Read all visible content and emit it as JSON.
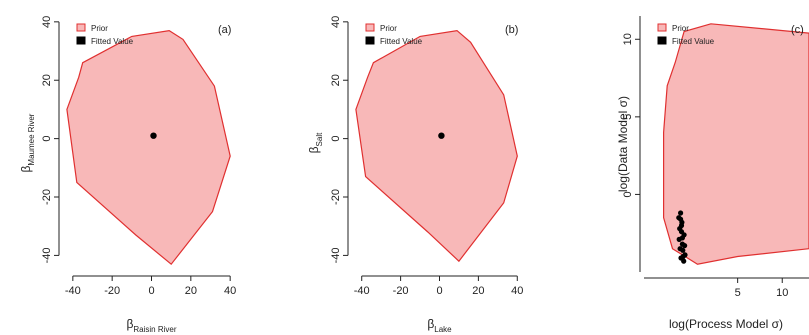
{
  "figure": "three-panel prior vs fitted scatter",
  "chart_data": [
    {
      "type": "area",
      "panel_label": "(a)",
      "xlabel_base": "β",
      "xlabel_sub": "Raisin River",
      "ylabel_base": "β",
      "ylabel_sub": "Maumee River",
      "xlim": [
        -45,
        45
      ],
      "ylim": [
        -45,
        42
      ],
      "xticks": [
        -40,
        -20,
        0,
        20,
        40
      ],
      "yticks": [
        -40,
        -20,
        0,
        20,
        40
      ],
      "legend": {
        "placement": "top-left",
        "entries": [
          "Prior",
          "Fitted Value"
        ]
      },
      "series": [
        {
          "name": "Prior",
          "kind": "polygon",
          "fill": "#f8b8b8",
          "stroke": "#e03030",
          "points": [
            [
              -35,
              26
            ],
            [
              -10,
              35
            ],
            [
              9,
              37
            ],
            [
              16,
              34
            ],
            [
              32,
              18
            ],
            [
              40,
              -6
            ],
            [
              31,
              -25
            ],
            [
              10,
              -43
            ],
            [
              -8,
              -33
            ],
            [
              -38,
              -15
            ],
            [
              -43,
              10
            ],
            [
              -37,
              21
            ]
          ]
        },
        {
          "name": "Fitted Value",
          "kind": "points",
          "color": "#000000",
          "points": [
            [
              1,
              1
            ]
          ]
        }
      ]
    },
    {
      "type": "area",
      "panel_label": "(b)",
      "xlabel_base": "β",
      "xlabel_sub": "Lake",
      "ylabel_base": "β",
      "ylabel_sub": "Salt",
      "xlim": [
        -45,
        45
      ],
      "ylim": [
        -45,
        42
      ],
      "xticks": [
        -40,
        -20,
        0,
        20,
        40
      ],
      "yticks": [
        -40,
        -20,
        0,
        20,
        40
      ],
      "legend": {
        "placement": "top-left",
        "entries": [
          "Prior",
          "Fitted Value"
        ]
      },
      "series": [
        {
          "name": "Prior",
          "kind": "polygon",
          "fill": "#f8b8b8",
          "stroke": "#e03030",
          "points": [
            [
              -34,
              26
            ],
            [
              -10,
              35
            ],
            [
              9,
              37
            ],
            [
              16,
              33
            ],
            [
              33,
              15
            ],
            [
              40,
              -6
            ],
            [
              33,
              -22
            ],
            [
              10,
              -42
            ],
            [
              -6,
              -32
            ],
            [
              -38,
              -13
            ],
            [
              -43,
              10
            ],
            [
              -37,
              21
            ]
          ]
        },
        {
          "name": "Fitted Value",
          "kind": "points",
          "color": "#000000",
          "points": [
            [
              1,
              1
            ]
          ]
        }
      ]
    },
    {
      "type": "area",
      "panel_label": "(c)",
      "xlabel": "log(Process Model σ)",
      "ylabel": "log(Data Model σ)",
      "xlim": [
        -5.5,
        13
      ],
      "ylim": [
        -5,
        11.5
      ],
      "xticks": [
        5,
        10
      ],
      "yticks": [
        0,
        5,
        10
      ],
      "legend": {
        "placement": "top-left",
        "entries": [
          "Prior",
          "Fitted Value"
        ]
      },
      "series": [
        {
          "name": "Prior",
          "kind": "polygon",
          "fill": "#f8b8b8",
          "stroke": "#e03030",
          "points": [
            [
              -2,
              8.5
            ],
            [
              -1,
              10.5
            ],
            [
              2,
              11
            ],
            [
              13,
              10.4
            ],
            [
              13,
              -3.5
            ],
            [
              5,
              -4
            ],
            [
              0.5,
              -4.5
            ],
            [
              -2.3,
              -3.5
            ],
            [
              -3.3,
              -1.5
            ],
            [
              -3.3,
              4
            ],
            [
              -2.9,
              7
            ]
          ]
        },
        {
          "name": "Fitted Value",
          "kind": "points",
          "color": "#000000",
          "points": [
            [
              -1.4,
              -1.2
            ],
            [
              -1.4,
              -1.6
            ],
            [
              -1.3,
              -2.0
            ],
            [
              -1.3,
              -2.4
            ],
            [
              -1.2,
              -2.8
            ],
            [
              -1.2,
              -3.2
            ],
            [
              -1.15,
              -3.6
            ],
            [
              -1.1,
              -4.0
            ],
            [
              -1.05,
              -4.3
            ],
            [
              -1.6,
              -1.5
            ],
            [
              -1.5,
              -2.2
            ],
            [
              -1.55,
              -2.9
            ],
            [
              -1.45,
              -3.5
            ],
            [
              -1.35,
              -4.1
            ],
            [
              -1.0,
              -2.6
            ],
            [
              -0.95,
              -3.3
            ],
            [
              -0.9,
              -3.9
            ],
            [
              -1.25,
              -1.8
            ]
          ]
        }
      ]
    }
  ]
}
